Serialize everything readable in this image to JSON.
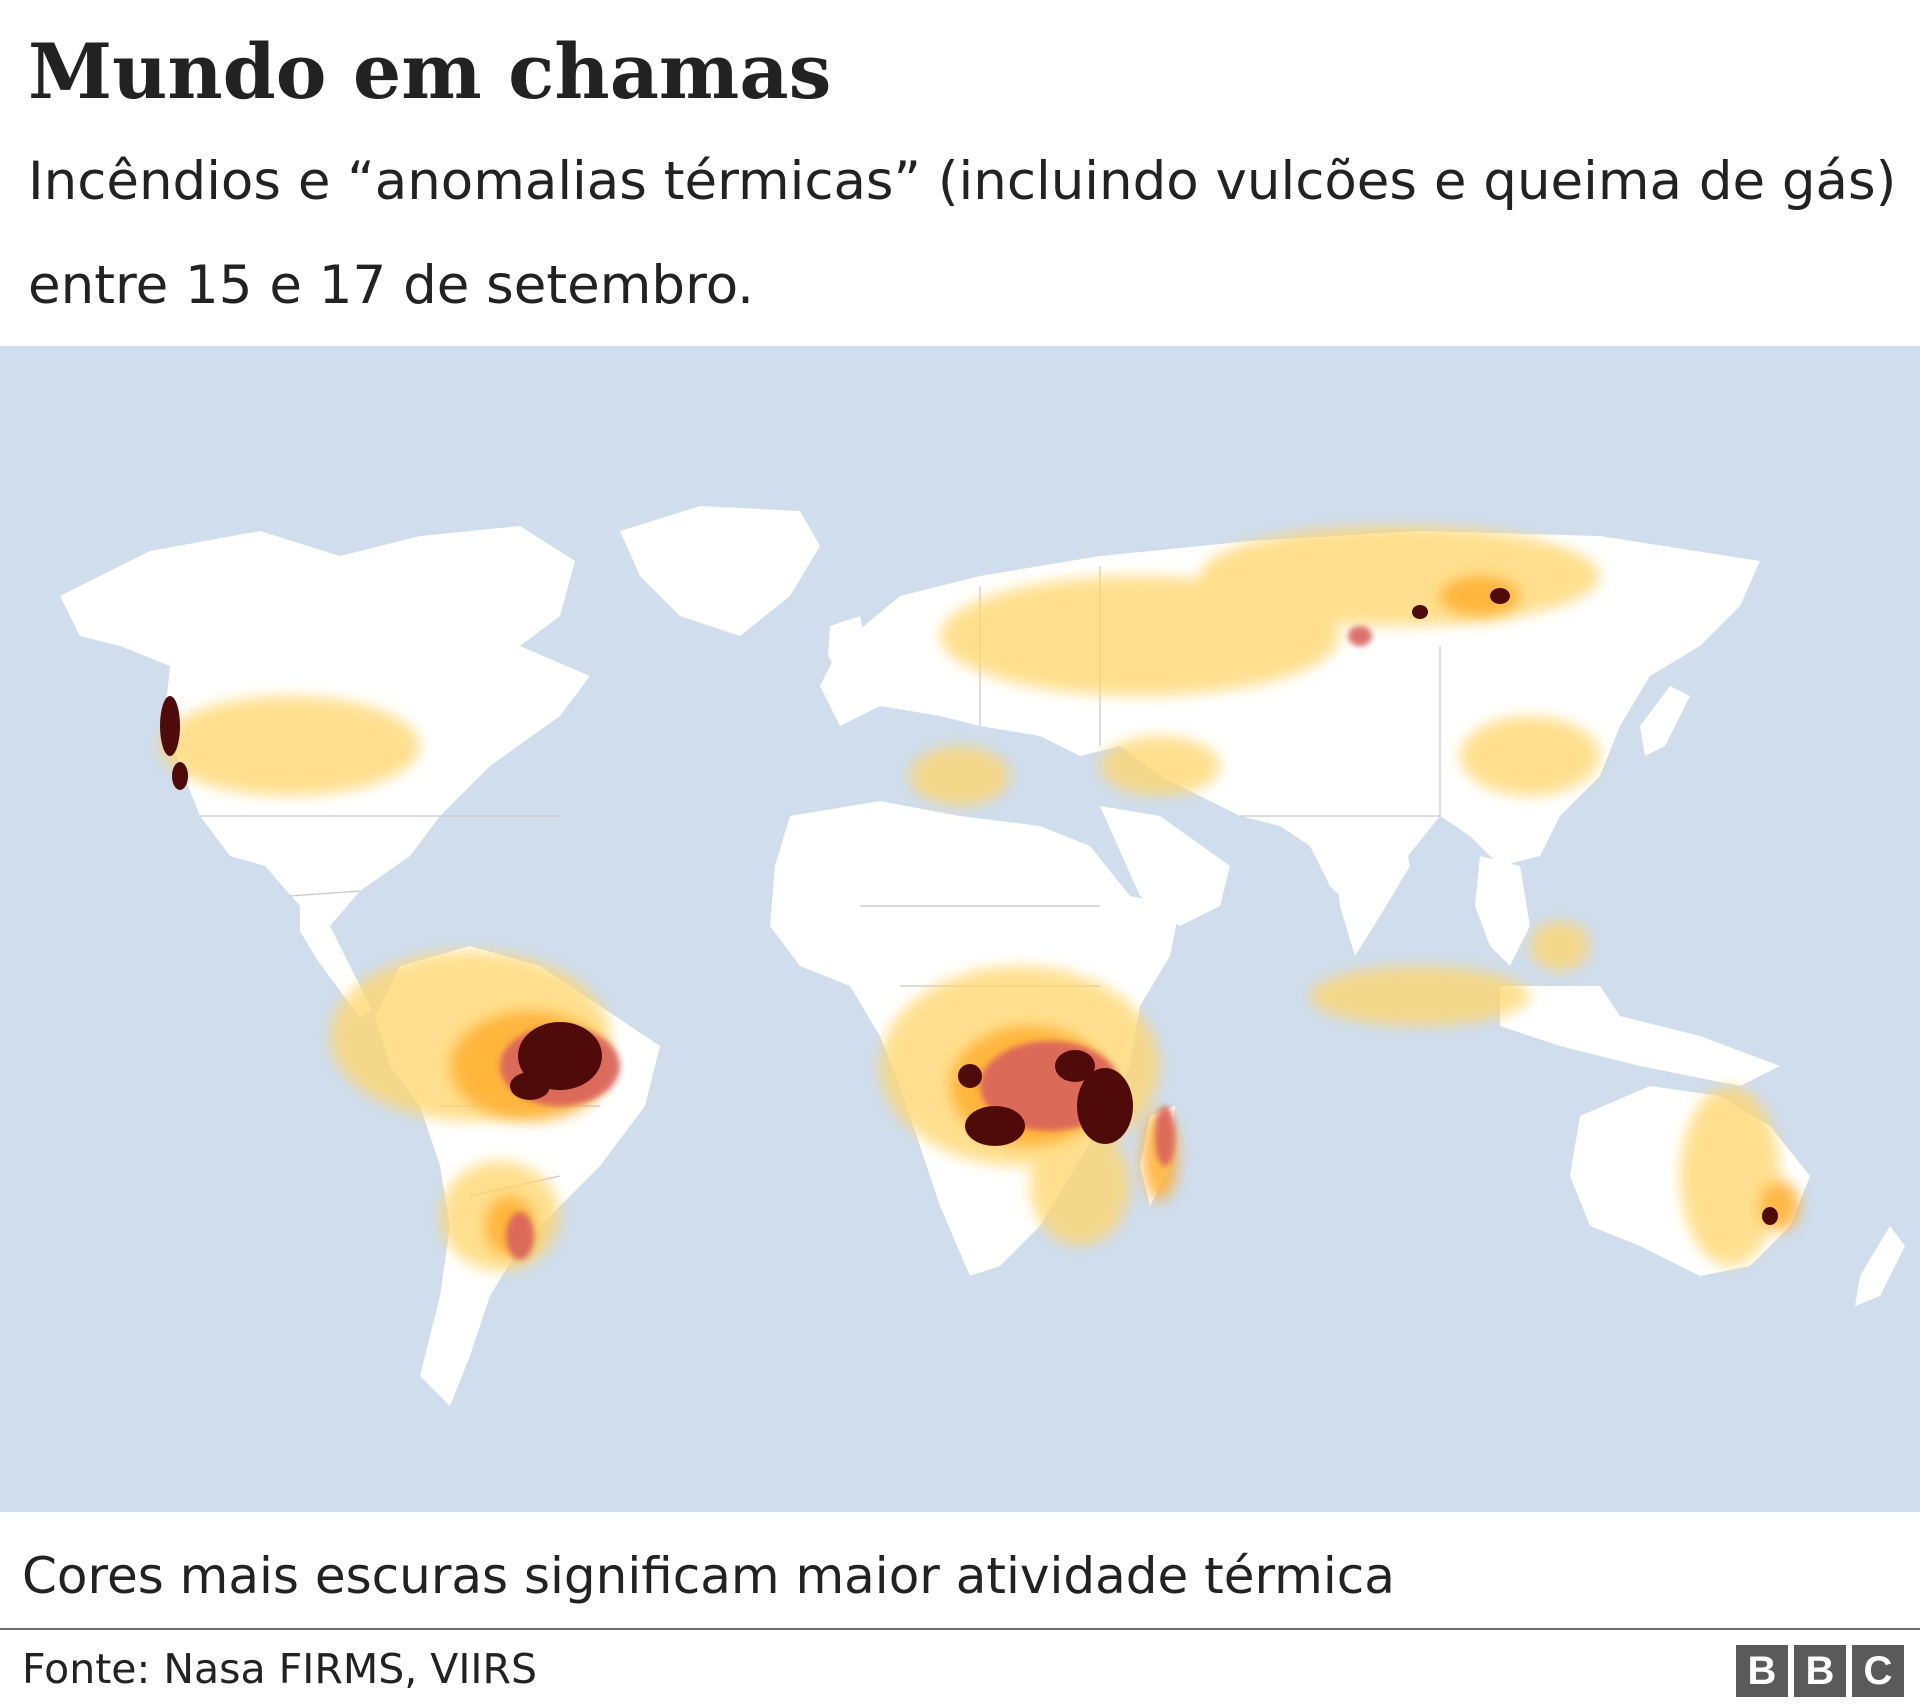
{
  "header": {
    "title": "Mundo em chamas",
    "subtitle": "Incêndios e “anomalias térmicas” (incluindo vulcões e queima de gás) entre 15 e 17 de setembro."
  },
  "map": {
    "type": "heatmap",
    "ocean_color": "#cfdded",
    "land_color": "#ffffff",
    "border_color": "#c8c8c8",
    "scale_colors": [
      "#ffd56a",
      "#ffae2e",
      "#f08c2a",
      "#d9625c",
      "#a0281f",
      "#4f0a0a"
    ]
  },
  "legend": {
    "note": "Cores mais escuras significam maior atividade térmica"
  },
  "footer": {
    "source": "Fonte: Nasa FIRMS, VIIRS",
    "logo_letters": [
      "B",
      "B",
      "C"
    ]
  }
}
